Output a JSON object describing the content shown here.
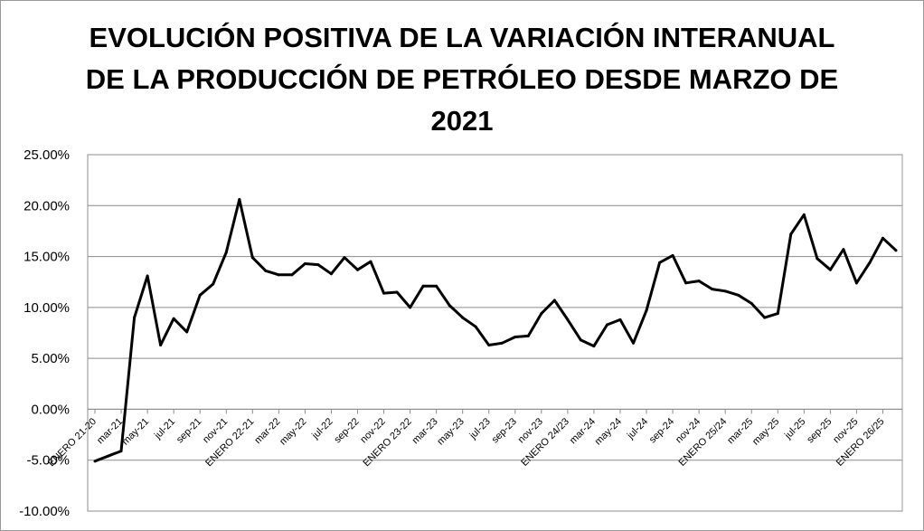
{
  "chart_data": {
    "type": "line",
    "title": "EVOLUCIÓN POSITIVA DE LA VARIACIÓN INTERANUAL DE LA PRODUCCIÓN DE PETRÓLEO DESDE MARZO DE 2021",
    "title_lines": [
      "EVOLUCIÓN POSITIVA DE LA VARIACIÓN INTERANUAL",
      "DE LA PRODUCCIÓN DE PETRÓLEO DESDE MARZO DE",
      "2021"
    ],
    "xlabel": "",
    "ylabel": "",
    "ylim": [
      -10,
      25
    ],
    "y_ticks": [
      "-10.00%",
      "-5.00%",
      "0.00%",
      "5.00%",
      "10.00%",
      "15.00%",
      "20.00%",
      "25.00%"
    ],
    "grid": "horizontal",
    "x_tick_labels": [
      "ENERO 21-20",
      "mar-21",
      "may-21",
      "jul-21",
      "sep-21",
      "nov-21",
      "ENERO 22-21",
      "mar-22",
      "may-22",
      "jul-22",
      "sep-22",
      "nov-22",
      "ENERO 23-22",
      "mar-23",
      "may-23",
      "jul-23",
      "sep-23",
      "nov-23",
      "ENERO 24/23",
      "mar-24",
      "may-24",
      "jul-24",
      "sep-24",
      "nov-24",
      "ENERO 25/24",
      "mar-25",
      "may-25",
      "jul-25",
      "sep-25",
      "nov-25",
      "ENERO 26/25"
    ],
    "line_color": "#000000",
    "series": [
      {
        "values": [
          -5.1,
          -4.6,
          -4.1,
          9.0,
          13.1,
          6.3,
          8.9,
          7.6,
          11.2,
          12.3,
          15.4,
          20.6,
          14.9,
          13.6,
          13.2,
          13.2,
          14.3,
          14.2,
          13.3,
          14.9,
          13.7,
          14.5,
          11.4,
          11.5,
          10.0,
          12.1,
          12.1,
          10.2,
          9.0,
          8.1,
          6.3,
          6.5,
          7.1,
          7.2,
          9.4,
          10.7,
          8.8,
          6.8,
          6.2,
          8.3,
          8.8,
          6.5,
          9.7,
          14.4,
          15.1,
          12.4,
          12.6,
          11.8,
          11.6,
          11.2,
          10.4,
          9.0,
          9.4,
          17.2,
          19.1,
          14.8,
          13.7,
          15.7,
          12.4,
          14.4,
          16.8,
          15.6
        ]
      }
    ]
  }
}
